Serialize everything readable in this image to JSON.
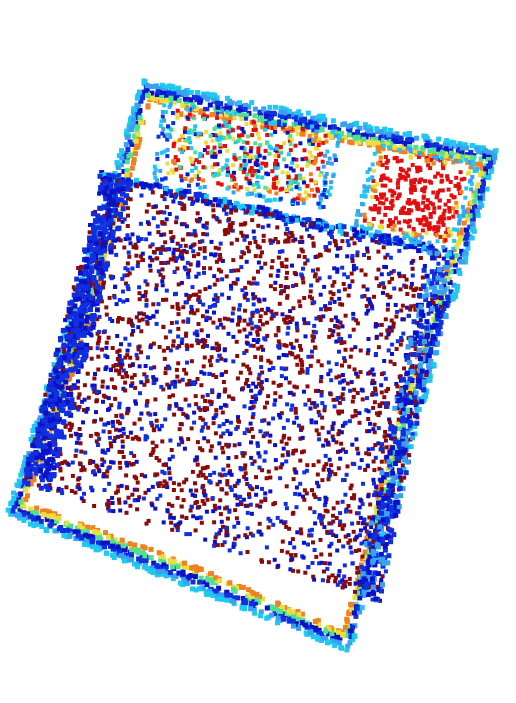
{
  "scene": {
    "subject": "point-cloud-bed-top-view",
    "colormap": "jet",
    "background": "#ffffff",
    "palette": {
      "dark_blue": "#0a12c8",
      "blue": "#1030e0",
      "cyan": "#1ec8f0",
      "light_blue": "#3aa0f0",
      "green": "#50e090",
      "yellow": "#e8e040",
      "orange": "#f08020",
      "red": "#e01010",
      "dark_red": "#8a0a0a"
    },
    "regions": [
      {
        "name": "left-pillow",
        "dominant_colors": [
          "cyan",
          "red",
          "yellow",
          "dark_blue"
        ]
      },
      {
        "name": "right-pillow",
        "dominant_colors": [
          "red",
          "orange",
          "cyan"
        ]
      },
      {
        "name": "mattress-surface",
        "dominant_colors": [
          "dark_red",
          "dark_blue"
        ]
      },
      {
        "name": "bed-frame-rim",
        "dominant_colors": [
          "cyan",
          "blue",
          "green",
          "orange",
          "red"
        ]
      }
    ]
  }
}
